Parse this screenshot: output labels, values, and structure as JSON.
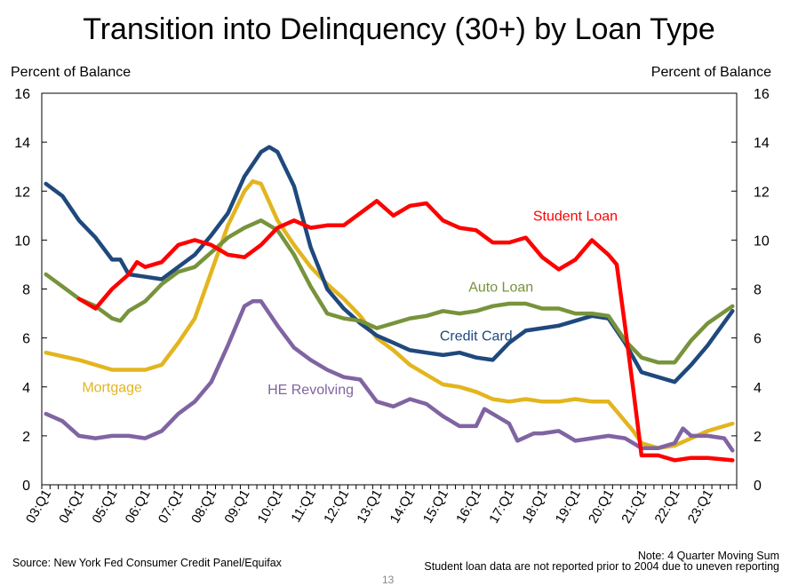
{
  "title": "Transition into Delinquency (30+) by Loan Type",
  "footer": {
    "source": "Source: New York Fed Consumer Credit Panel/Equifax",
    "note1": "Note: 4 Quarter Moving Sum",
    "note2": "Student loan data are not reported prior to 2004 due to uneven reporting",
    "page_number": "13"
  },
  "chart_data": {
    "type": "line",
    "title": "Transition into Delinquency (30+) by Loan Type",
    "ylabel_left": "Percent of Balance",
    "ylabel_right": "Percent of Balance",
    "ylim": [
      0,
      16
    ],
    "yticks": [
      0,
      2,
      4,
      6,
      8,
      10,
      12,
      14,
      16
    ],
    "x_range": [
      "2003 Q1",
      "2023 Q4"
    ],
    "xticks": [
      "03:Q1",
      "04:Q1",
      "05:Q1",
      "06:Q1",
      "07:Q1",
      "08:Q1",
      "09:Q1",
      "10:Q1",
      "11:Q1",
      "12:Q1",
      "13:Q1",
      "14:Q1",
      "15:Q1",
      "16:Q1",
      "17:Q1",
      "18:Q1",
      "19:Q1",
      "20:Q1",
      "21:Q1",
      "22:Q1",
      "23:Q1"
    ],
    "legend": "inline labels",
    "grid": false,
    "series": [
      {
        "name": "Mortgage",
        "color": "#E3B51E",
        "points": [
          [
            "2003 Q1",
            5.4
          ],
          [
            "2004 Q1",
            5.1
          ],
          [
            "2005 Q1",
            4.7
          ],
          [
            "2006 Q1",
            4.7
          ],
          [
            "2006 Q3",
            4.9
          ],
          [
            "2007 Q1",
            5.8
          ],
          [
            "2007 Q3",
            6.8
          ],
          [
            "2008 Q1",
            8.7
          ],
          [
            "2008 Q3",
            10.6
          ],
          [
            "2009 Q1",
            12.0
          ],
          [
            "2009 Q2",
            12.4
          ],
          [
            "2009 Q3",
            12.3
          ],
          [
            "2010 Q1",
            10.8
          ],
          [
            "2010 Q3",
            9.8
          ],
          [
            "2011 Q1",
            8.9
          ],
          [
            "2011 Q3",
            8.2
          ],
          [
            "2012 Q1",
            7.6
          ],
          [
            "2012 Q3",
            6.9
          ],
          [
            "2013 Q1",
            6.0
          ],
          [
            "2013 Q3",
            5.5
          ],
          [
            "2014 Q1",
            4.9
          ],
          [
            "2014 Q3",
            4.5
          ],
          [
            "2015 Q1",
            4.1
          ],
          [
            "2015 Q3",
            4.0
          ],
          [
            "2016 Q1",
            3.8
          ],
          [
            "2016 Q3",
            3.5
          ],
          [
            "2017 Q1",
            3.4
          ],
          [
            "2017 Q3",
            3.5
          ],
          [
            "2018 Q1",
            3.4
          ],
          [
            "2018 Q3",
            3.4
          ],
          [
            "2019 Q1",
            3.5
          ],
          [
            "2019 Q3",
            3.4
          ],
          [
            "2020 Q1",
            3.4
          ],
          [
            "2020 Q2",
            3.0
          ],
          [
            "2020 Q4",
            2.2
          ],
          [
            "2021 Q1",
            1.7
          ],
          [
            "2021 Q3",
            1.5
          ],
          [
            "2022 Q1",
            1.6
          ],
          [
            "2022 Q3",
            1.9
          ],
          [
            "2023 Q1",
            2.2
          ],
          [
            "2023 Q4",
            2.5
          ]
        ]
      },
      {
        "name": "HE Revolving",
        "color": "#8064A2",
        "points": [
          [
            "2003 Q1",
            2.9
          ],
          [
            "2003 Q3",
            2.6
          ],
          [
            "2004 Q1",
            2.0
          ],
          [
            "2004 Q3",
            1.9
          ],
          [
            "2005 Q1",
            2.0
          ],
          [
            "2005 Q3",
            2.0
          ],
          [
            "2006 Q1",
            1.9
          ],
          [
            "2006 Q3",
            2.2
          ],
          [
            "2007 Q1",
            2.9
          ],
          [
            "2007 Q3",
            3.4
          ],
          [
            "2008 Q1",
            4.2
          ],
          [
            "2008 Q3",
            5.7
          ],
          [
            "2009 Q1",
            7.3
          ],
          [
            "2009 Q2",
            7.5
          ],
          [
            "2009 Q3",
            7.5
          ],
          [
            "2010 Q1",
            6.5
          ],
          [
            "2010 Q3",
            5.6
          ],
          [
            "2011 Q1",
            5.1
          ],
          [
            "2011 Q3",
            4.7
          ],
          [
            "2012 Q1",
            4.4
          ],
          [
            "2012 Q3",
            4.3
          ],
          [
            "2013 Q1",
            3.4
          ],
          [
            "2013 Q3",
            3.2
          ],
          [
            "2014 Q1",
            3.5
          ],
          [
            "2014 Q3",
            3.3
          ],
          [
            "2015 Q1",
            2.8
          ],
          [
            "2015 Q3",
            2.4
          ],
          [
            "2016 Q1",
            2.4
          ],
          [
            "2016 Q2",
            3.1
          ],
          [
            "2016 Q3",
            2.9
          ],
          [
            "2017 Q1",
            2.5
          ],
          [
            "2017 Q2",
            1.8
          ],
          [
            "2017 Q4",
            2.1
          ],
          [
            "2018 Q1",
            2.1
          ],
          [
            "2018 Q3",
            2.2
          ],
          [
            "2019 Q1",
            1.8
          ],
          [
            "2019 Q3",
            1.9
          ],
          [
            "2020 Q1",
            2.0
          ],
          [
            "2020 Q3",
            1.9
          ],
          [
            "2021 Q1",
            1.5
          ],
          [
            "2021 Q3",
            1.5
          ],
          [
            "2022 Q1",
            1.7
          ],
          [
            "2022 Q2",
            2.3
          ],
          [
            "2022 Q3",
            2.0
          ],
          [
            "2023 Q1",
            2.0
          ],
          [
            "2023 Q3",
            1.9
          ],
          [
            "2023 Q4",
            1.4
          ]
        ]
      },
      {
        "name": "Credit Card",
        "color": "#1F497D",
        "points": [
          [
            "2003 Q1",
            12.3
          ],
          [
            "2003 Q3",
            11.8
          ],
          [
            "2004 Q1",
            10.8
          ],
          [
            "2004 Q3",
            10.1
          ],
          [
            "2005 Q1",
            9.2
          ],
          [
            "2005 Q2",
            9.2
          ],
          [
            "2005 Q3",
            8.6
          ],
          [
            "2006 Q1",
            8.5
          ],
          [
            "2006 Q3",
            8.4
          ],
          [
            "2007 Q1",
            8.9
          ],
          [
            "2007 Q3",
            9.4
          ],
          [
            "2008 Q1",
            10.2
          ],
          [
            "2008 Q3",
            11.1
          ],
          [
            "2009 Q1",
            12.6
          ],
          [
            "2009 Q3",
            13.6
          ],
          [
            "2009 Q4",
            13.8
          ],
          [
            "2010 Q1",
            13.6
          ],
          [
            "2010 Q3",
            12.2
          ],
          [
            "2011 Q1",
            9.7
          ],
          [
            "2011 Q3",
            8.0
          ],
          [
            "2012 Q1",
            7.2
          ],
          [
            "2012 Q3",
            6.6
          ],
          [
            "2013 Q1",
            6.1
          ],
          [
            "2013 Q3",
            5.8
          ],
          [
            "2014 Q1",
            5.5
          ],
          [
            "2014 Q3",
            5.4
          ],
          [
            "2015 Q1",
            5.3
          ],
          [
            "2015 Q3",
            5.4
          ],
          [
            "2016 Q1",
            5.2
          ],
          [
            "2016 Q3",
            5.1
          ],
          [
            "2017 Q1",
            5.8
          ],
          [
            "2017 Q3",
            6.3
          ],
          [
            "2018 Q1",
            6.4
          ],
          [
            "2018 Q3",
            6.5
          ],
          [
            "2019 Q1",
            6.7
          ],
          [
            "2019 Q3",
            6.9
          ],
          [
            "2020 Q1",
            6.8
          ],
          [
            "2020 Q3",
            5.8
          ],
          [
            "2021 Q1",
            4.6
          ],
          [
            "2021 Q3",
            4.4
          ],
          [
            "2022 Q1",
            4.2
          ],
          [
            "2022 Q3",
            4.9
          ],
          [
            "2023 Q1",
            5.7
          ],
          [
            "2023 Q4",
            7.1
          ]
        ]
      },
      {
        "name": "Auto Loan",
        "color": "#77933C",
        "points": [
          [
            "2003 Q1",
            8.6
          ],
          [
            "2003 Q3",
            8.1
          ],
          [
            "2004 Q1",
            7.6
          ],
          [
            "2004 Q3",
            7.3
          ],
          [
            "2005 Q1",
            6.8
          ],
          [
            "2005 Q2",
            6.7
          ],
          [
            "2005 Q3",
            7.1
          ],
          [
            "2006 Q1",
            7.5
          ],
          [
            "2006 Q3",
            8.2
          ],
          [
            "2007 Q1",
            8.7
          ],
          [
            "2007 Q3",
            8.9
          ],
          [
            "2008 Q1",
            9.5
          ],
          [
            "2008 Q3",
            10.1
          ],
          [
            "2009 Q1",
            10.5
          ],
          [
            "2009 Q3",
            10.8
          ],
          [
            "2010 Q1",
            10.4
          ],
          [
            "2010 Q3",
            9.4
          ],
          [
            "2011 Q1",
            8.1
          ],
          [
            "2011 Q3",
            7.0
          ],
          [
            "2012 Q1",
            6.8
          ],
          [
            "2012 Q3",
            6.7
          ],
          [
            "2013 Q1",
            6.4
          ],
          [
            "2013 Q3",
            6.6
          ],
          [
            "2014 Q1",
            6.8
          ],
          [
            "2014 Q3",
            6.9
          ],
          [
            "2015 Q1",
            7.1
          ],
          [
            "2015 Q3",
            7.0
          ],
          [
            "2016 Q1",
            7.1
          ],
          [
            "2016 Q3",
            7.3
          ],
          [
            "2017 Q1",
            7.4
          ],
          [
            "2017 Q3",
            7.4
          ],
          [
            "2018 Q1",
            7.2
          ],
          [
            "2018 Q3",
            7.2
          ],
          [
            "2019 Q1",
            7.0
          ],
          [
            "2019 Q3",
            7.0
          ],
          [
            "2020 Q1",
            6.9
          ],
          [
            "2020 Q3",
            5.9
          ],
          [
            "2021 Q1",
            5.2
          ],
          [
            "2021 Q3",
            5.0
          ],
          [
            "2022 Q1",
            5.0
          ],
          [
            "2022 Q3",
            5.9
          ],
          [
            "2023 Q1",
            6.6
          ],
          [
            "2023 Q4",
            7.3
          ]
        ]
      },
      {
        "name": "Student Loan",
        "color": "#FF0000",
        "points": [
          [
            "2004 Q1",
            7.6
          ],
          [
            "2004 Q3",
            7.2
          ],
          [
            "2005 Q1",
            8.0
          ],
          [
            "2005 Q3",
            8.6
          ],
          [
            "2005 Q4",
            9.1
          ],
          [
            "2006 Q1",
            8.9
          ],
          [
            "2006 Q3",
            9.1
          ],
          [
            "2007 Q1",
            9.8
          ],
          [
            "2007 Q3",
            10.0
          ],
          [
            "2008 Q1",
            9.8
          ],
          [
            "2008 Q3",
            9.4
          ],
          [
            "2009 Q1",
            9.3
          ],
          [
            "2009 Q3",
            9.8
          ],
          [
            "2010 Q1",
            10.5
          ],
          [
            "2010 Q3",
            10.8
          ],
          [
            "2011 Q1",
            10.5
          ],
          [
            "2011 Q3",
            10.6
          ],
          [
            "2012 Q1",
            10.6
          ],
          [
            "2012 Q3",
            11.1
          ],
          [
            "2013 Q1",
            11.6
          ],
          [
            "2013 Q3",
            11.0
          ],
          [
            "2014 Q1",
            11.4
          ],
          [
            "2014 Q3",
            11.5
          ],
          [
            "2015 Q1",
            10.8
          ],
          [
            "2015 Q3",
            10.5
          ],
          [
            "2016 Q1",
            10.4
          ],
          [
            "2016 Q3",
            9.9
          ],
          [
            "2017 Q1",
            9.9
          ],
          [
            "2017 Q3",
            10.1
          ],
          [
            "2018 Q1",
            9.3
          ],
          [
            "2018 Q3",
            8.8
          ],
          [
            "2019 Q1",
            9.2
          ],
          [
            "2019 Q3",
            10.0
          ],
          [
            "2020 Q1",
            9.4
          ],
          [
            "2020 Q2",
            9.0
          ],
          [
            "2020 Q3",
            6.5
          ],
          [
            "2020 Q4",
            3.9
          ],
          [
            "2021 Q1",
            1.2
          ],
          [
            "2021 Q3",
            1.2
          ],
          [
            "2022 Q1",
            1.0
          ],
          [
            "2022 Q3",
            1.1
          ],
          [
            "2023 Q1",
            1.1
          ],
          [
            "2023 Q4",
            1.0
          ]
        ]
      }
    ],
    "annotations": [
      {
        "text": "Student Loan",
        "series": "Student Loan",
        "at": [
          "2019 Q1",
          10.8
        ]
      },
      {
        "text": "Auto Loan",
        "series": "Auto Loan",
        "at": [
          "2016 Q4",
          7.9
        ]
      },
      {
        "text": "Credit Card",
        "series": "Credit Card",
        "at": [
          "2016 Q1",
          5.9
        ]
      },
      {
        "text": "Mortgage",
        "series": "Mortgage",
        "at": [
          "2005 Q1",
          3.8
        ]
      },
      {
        "text": "HE Revolving",
        "series": "HE Revolving",
        "at": [
          "2011 Q1",
          3.7
        ]
      }
    ]
  }
}
